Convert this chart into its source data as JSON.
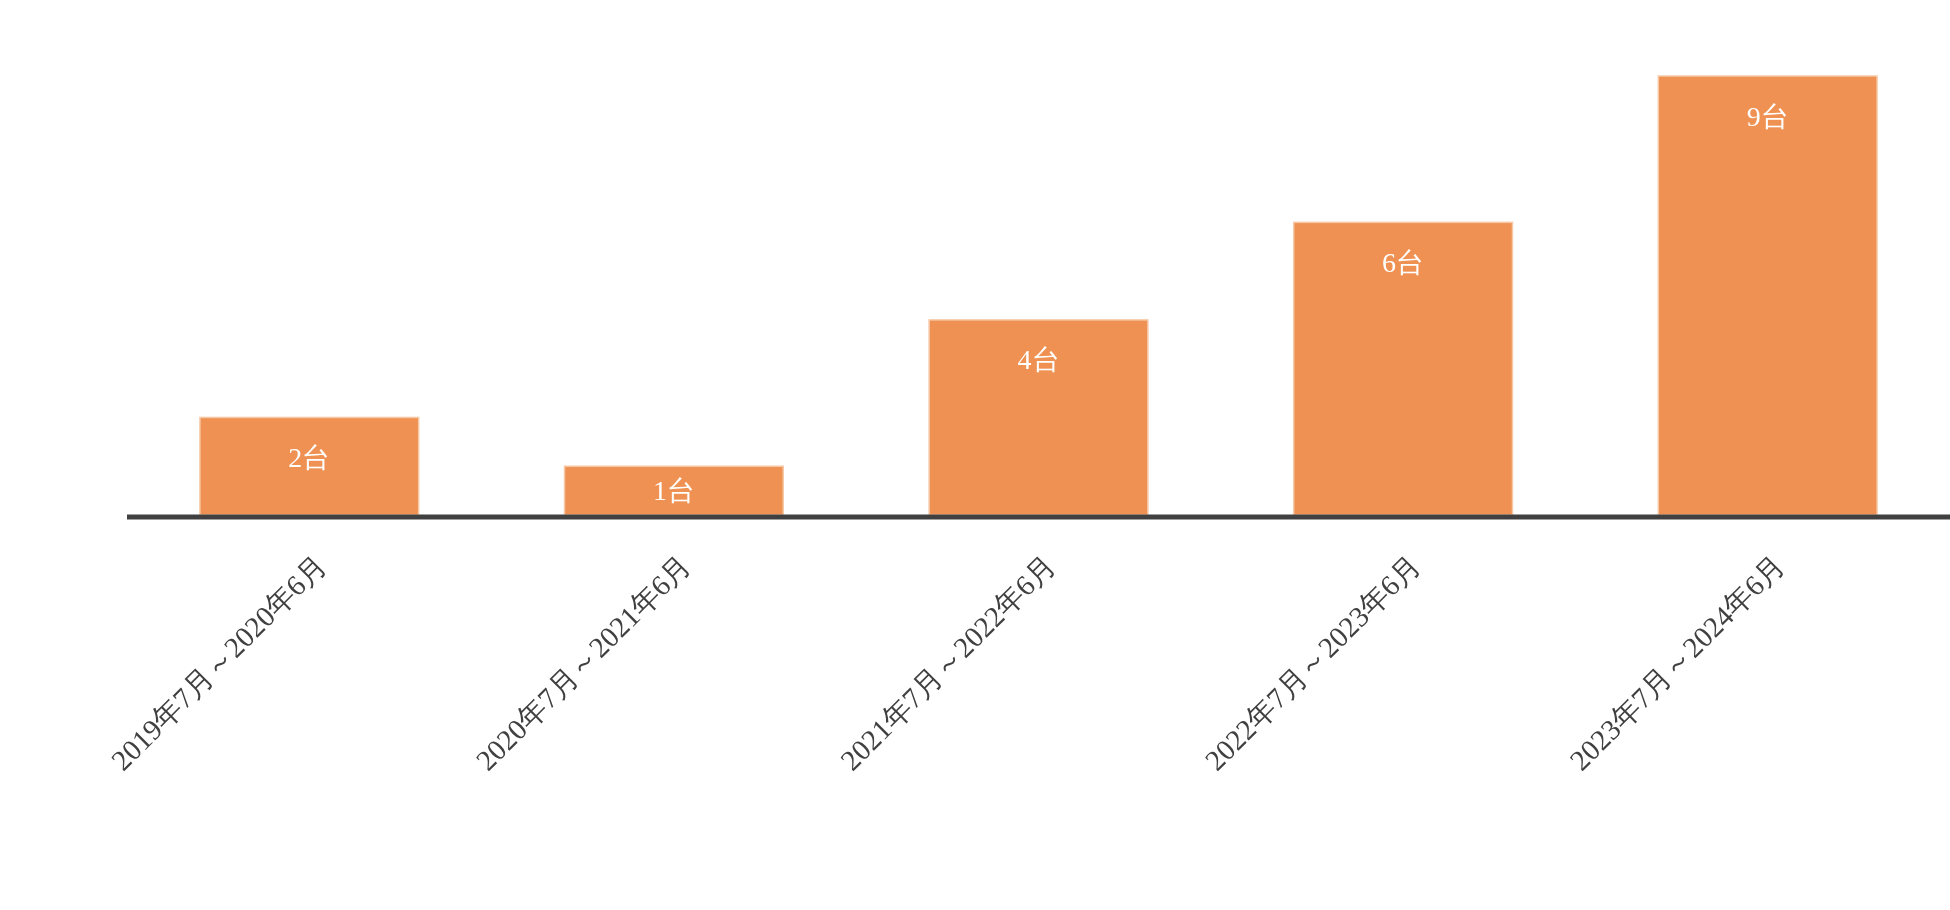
{
  "chart_data": {
    "type": "bar",
    "categories": [
      "2019年7月～2020年6月",
      "2020年7月～2021年6月",
      "2021年7月～2022年6月",
      "2022年7月～2023年6月",
      "2023年7月～2024年6月"
    ],
    "values": [
      2,
      1,
      4,
      6,
      9
    ],
    "color": "#ef9152",
    "value_labels": [
      "2台",
      "1台",
      "4台",
      "6台",
      "9台"
    ]
  }
}
